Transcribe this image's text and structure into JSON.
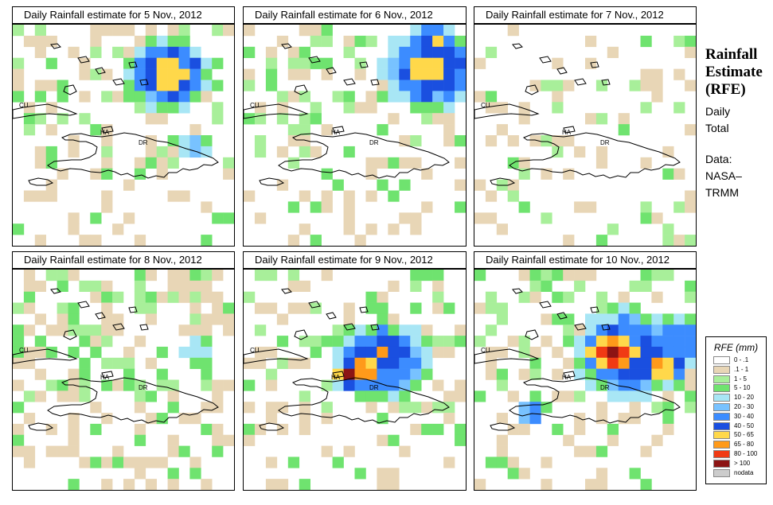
{
  "sidebar": {
    "title_line1": "Rainfall",
    "title_line2": "Estimate",
    "title_line3": "(RFE)",
    "daily": "Daily",
    "total": "Total",
    "data_label": "Data:",
    "source_line1": "NASA–",
    "source_line2": "TRMM"
  },
  "country_labels": {
    "cu": "CU",
    "ha": "HA",
    "dr": "DR"
  },
  "panels": [
    {
      "title": "Daily Rainfall estimate for  5 Nov., 2012"
    },
    {
      "title": "Daily Rainfall estimate for  6 Nov., 2012"
    },
    {
      "title": "Daily Rainfall estimate for  7 Nov., 2012"
    },
    {
      "title": "Daily Rainfall estimate for  8 Nov., 2012"
    },
    {
      "title": "Daily Rainfall estimate for  9 Nov., 2012"
    },
    {
      "title": "Daily Rainfall estimate for  10 Nov., 2012"
    }
  ],
  "legend": {
    "title": "RFE (mm)",
    "items": [
      {
        "label": "0 - .1",
        "color": "#ffffff"
      },
      {
        "label": ".1 - 1",
        "color": "#e8d6b6"
      },
      {
        "label": "1 - 5",
        "color": "#a8ef9a"
      },
      {
        "label": "5 - 10",
        "color": "#6fe36f"
      },
      {
        "label": "10 - 20",
        "color": "#a8e6f5"
      },
      {
        "label": "20 - 30",
        "color": "#78c2ff"
      },
      {
        "label": "30 - 40",
        "color": "#3c8cff"
      },
      {
        "label": "40 - 50",
        "color": "#1a4fe0"
      },
      {
        "label": "50 - 65",
        "color": "#ffd84a"
      },
      {
        "label": "65 - 80",
        "color": "#ff9a1a"
      },
      {
        "label": "80 - 100",
        "color": "#f03a14"
      },
      {
        "label": "> 100",
        "color": "#8c1414"
      },
      {
        "label": "nodata",
        "color": "#cccccc"
      }
    ]
  }
}
